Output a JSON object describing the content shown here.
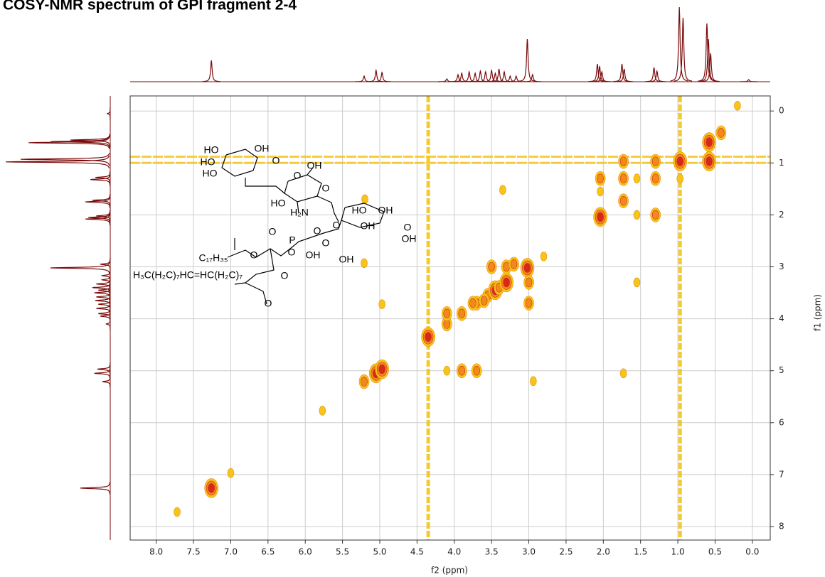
{
  "chart_data": {
    "type": "cosy",
    "title": "COSY-NMR spectrum of GPI fragment 2-4",
    "xlabel": "f2 (ppm)",
    "ylabel": "f1 (ppm)",
    "xlim": [
      8.35,
      -0.24
    ],
    "ylim": [
      -0.29,
      8.26
    ],
    "xticks": [
      {
        "value": 8,
        "label": "8.0"
      },
      7.5,
      {
        "value": 7,
        "label": "7.0"
      },
      6.5,
      {
        "value": 6,
        "label": "6.0"
      },
      5.5,
      {
        "value": 5,
        "label": "5.0"
      },
      4.5,
      {
        "value": 4,
        "label": "4.0"
      },
      3.5,
      {
        "value": 3,
        "label": "3.0"
      },
      2.5,
      {
        "value": 2,
        "label": "2.0"
      },
      1.5,
      {
        "value": 1,
        "label": "1.0"
      },
      0.5,
      {
        "value": 0,
        "label": "0.0"
      }
    ],
    "yticks": [
      0,
      1,
      2,
      3,
      4,
      5,
      6,
      7,
      8
    ],
    "grid": true,
    "projection_color": "#7a0a0a",
    "contour_colors": [
      "#f5c518",
      "#f08a1a",
      "#d42a1a"
    ],
    "projection": {
      "ppm": [
        7.26,
        5.21,
        5.05,
        4.97,
        4.1,
        3.95,
        3.9,
        3.8,
        3.72,
        3.65,
        3.58,
        3.5,
        3.45,
        3.4,
        3.33,
        3.25,
        3.17,
        3.02,
        2.95,
        2.08,
        2.05,
        2.02,
        1.75,
        1.72,
        1.32,
        1.28,
        0.98,
        0.93,
        0.61,
        0.59,
        0.56,
        0.05
      ],
      "height": [
        30,
        8,
        16,
        13,
        4,
        10,
        12,
        14,
        12,
        15,
        14,
        16,
        12,
        18,
        14,
        8,
        8,
        60,
        10,
        25,
        22,
        14,
        25,
        18,
        20,
        15,
        105,
        90,
        82,
        60,
        40,
        3
      ]
    },
    "cross_peaks": {
      "f2": [
        7.26,
        7.0,
        7.72,
        5.77,
        5.21,
        5.05,
        4.97,
        5.2,
        4.97,
        5.21,
        4.35,
        4.1,
        4.1,
        3.9,
        3.9,
        3.7,
        3.7,
        3.55,
        3.45,
        3.4,
        3.3,
        3.3,
        3.5,
        3.02,
        3.0,
        3.0,
        3.35,
        2.94,
        2.8,
        2.04,
        2.04,
        2.04,
        1.73,
        1.73,
        1.73,
        1.55,
        1.55,
        1.3,
        1.3,
        1.3,
        0.97,
        0.58,
        0.58,
        0.42,
        0.2,
        1.55,
        4.1,
        3.75,
        3.6,
        1.73,
        3.2,
        0.97
      ],
      "f1": [
        7.26,
        6.97,
        7.72,
        5.77,
        5.21,
        5.05,
        4.97,
        1.7,
        3.72,
        2.93,
        4.35,
        4.1,
        3.9,
        5.0,
        3.9,
        5.0,
        3.7,
        3.55,
        3.45,
        3.4,
        3.3,
        3.0,
        3.0,
        3.02,
        3.7,
        3.3,
        1.52,
        5.2,
        2.8,
        2.04,
        1.3,
        1.55,
        1.73,
        1.3,
        0.97,
        1.3,
        2.0,
        1.3,
        2.0,
        0.97,
        0.97,
        0.6,
        0.97,
        0.42,
        -0.1,
        3.3,
        5.0,
        3.7,
        3.65,
        5.05,
        2.95,
        1.3
      ],
      "intensity": [
        3,
        1,
        1,
        1,
        2,
        3,
        3,
        1,
        1,
        1,
        3,
        2,
        2,
        2,
        2,
        2,
        2,
        2,
        3,
        2,
        3,
        2,
        2,
        3,
        2,
        2,
        1,
        1,
        1,
        3,
        2,
        1,
        2,
        2,
        2,
        1,
        1,
        2,
        2,
        2,
        3,
        3,
        3,
        2,
        1,
        1,
        1,
        2,
        2,
        1,
        2,
        1
      ]
    },
    "t1_noise_f2": [
      4.35,
      0.97
    ],
    "t1_noise_f1": [
      0.88,
      1.0
    ]
  },
  "structure": {
    "labels": [
      "HO",
      "OH",
      "HO",
      "O",
      "OH",
      "HO",
      "O",
      "O",
      "HO",
      "H₂N",
      "HO",
      "OH",
      "O",
      "OH",
      "O",
      "O",
      "P",
      "O",
      "O",
      "OH",
      "C₁₇H₃₅",
      "O",
      "O",
      "OH",
      "H₃C(H₂C)₇HC=HC(H₂C)₇",
      "O",
      "O",
      "OH"
    ]
  }
}
